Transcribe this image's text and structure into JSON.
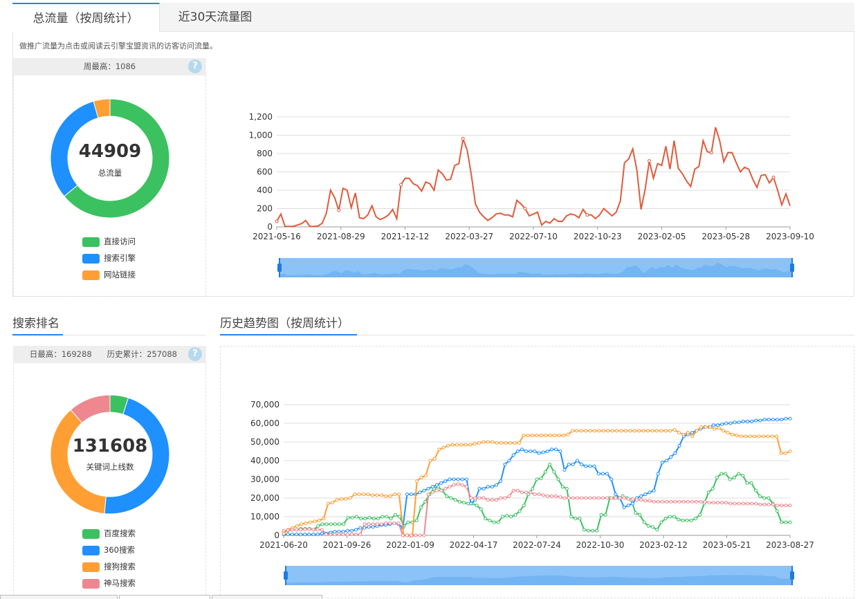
{
  "tabs": [
    {
      "label": "总流量（按周统计）"
    },
    {
      "label": "近30天流量图"
    }
  ],
  "description": "做推广流量为点击或阅读云引擎宝盟资讯的访客访问流量。",
  "traffic_panel": {
    "stat": "周最高：1086",
    "total": "44909",
    "total_caption": "总流量",
    "legend": [
      {
        "label": "直接访问",
        "color": "#3cc160"
      },
      {
        "label": "搜索引擎",
        "color": "#1e90ff"
      },
      {
        "label": "网站链接",
        "color": "#ff9f33"
      }
    ]
  },
  "ranking_section": {
    "title": "搜索排名",
    "stat_max": "日最高：169288",
    "stat_total": "历史累计：257088",
    "total": "131608",
    "total_caption": "关键词上线数",
    "legend": [
      {
        "label": "百度搜索",
        "color": "#3cc160"
      },
      {
        "label": "360搜索",
        "color": "#1e90ff"
      },
      {
        "label": "搜狗搜索",
        "color": "#ff9f33"
      },
      {
        "label": "神马搜索",
        "color": "#ef8790"
      }
    ]
  },
  "history_section": {
    "title": "历史趋势图（按周统计）"
  },
  "help_icon": "?",
  "chart_data": [
    {
      "id": "traffic-donut",
      "type": "pie",
      "labels": [
        "直接访问",
        "搜索引擎",
        "网站链接"
      ],
      "values": [
        64,
        31.5,
        4.5
      ],
      "colors": [
        "#3cc160",
        "#1e90ff",
        "#ff9f33"
      ]
    },
    {
      "id": "weekly-traffic",
      "type": "line",
      "x_ticks": [
        "2021-05-16",
        "2021-08-29",
        "2021-12-12",
        "2022-03-27",
        "2022-07-10",
        "2022-10-23",
        "2023-02-05",
        "2023-05-28",
        "2023-09-10"
      ],
      "ylim": [
        0,
        1200
      ],
      "y_ticks": [
        "0",
        "200",
        "400",
        "600",
        "800",
        "1,000",
        "1,200"
      ],
      "grid": true,
      "series": [
        {
          "color": "#e05a3a",
          "values": [
            60,
            140,
            5,
            5,
            5,
            20,
            35,
            70,
            5,
            5,
            10,
            40,
            150,
            400,
            320,
            180,
            420,
            400,
            210,
            370,
            100,
            90,
            130,
            230,
            110,
            80,
            100,
            130,
            190,
            90,
            460,
            530,
            530,
            470,
            450,
            390,
            490,
            470,
            400,
            620,
            580,
            510,
            520,
            670,
            690,
            960,
            840,
            570,
            250,
            160,
            110,
            70,
            100,
            140,
            150,
            130,
            130,
            110,
            290,
            250,
            200,
            120,
            140,
            160,
            20,
            60,
            40,
            90,
            60,
            60,
            120,
            140,
            130,
            100,
            190,
            130,
            130,
            90,
            130,
            200,
            160,
            120,
            160,
            280,
            700,
            740,
            850,
            620,
            190,
            410,
            720,
            530,
            690,
            670,
            880,
            630,
            940,
            640,
            580,
            500,
            440,
            630,
            660,
            940,
            820,
            810,
            1086,
            940,
            710,
            810,
            810,
            700,
            600,
            650,
            630,
            520,
            430,
            560,
            570,
            480,
            540,
            400,
            240,
            360,
            230
          ]
        }
      ]
    },
    {
      "id": "ranking-donut",
      "type": "pie",
      "labels": [
        "百度搜索",
        "360搜索",
        "搜狗搜索",
        "神马搜索"
      ],
      "values": [
        5,
        46.5,
        37,
        11.5
      ],
      "colors": [
        "#3cc160",
        "#1e90ff",
        "#ff9f33",
        "#ef8790"
      ]
    },
    {
      "id": "history-trend",
      "type": "line",
      "x_ticks": [
        "2021-06-20",
        "2021-09-26",
        "2022-01-09",
        "2022-04-17",
        "2022-07-24",
        "2022-10-30",
        "2023-02-12",
        "2023-05-21",
        "2023-08-27"
      ],
      "ylim": [
        0,
        70000
      ],
      "y_ticks": [
        "0",
        "10,000",
        "20,000",
        "30,000",
        "40,000",
        "50,000",
        "60,000",
        "70,000"
      ],
      "grid": true,
      "series": [
        {
          "name": "百度搜索",
          "color": "#3cc160",
          "values": [
            2000,
            2500,
            3000,
            3000,
            3500,
            3500,
            3500,
            3000,
            5000,
            6000,
            6000,
            6000,
            6000,
            6000,
            6000,
            9500,
            9500,
            10000,
            9000,
            9000,
            9500,
            9000,
            9000,
            10000,
            10000,
            9000,
            11000,
            10000,
            5000,
            7000,
            7000,
            8000,
            15000,
            18000,
            22000,
            25000,
            26000,
            24000,
            21000,
            20000,
            19000,
            18000,
            17500,
            17000,
            17000,
            16000,
            14000,
            9000,
            8000,
            7000,
            7000,
            10000,
            10500,
            10000,
            11000,
            13000,
            16000,
            22000,
            25000,
            30000,
            30500,
            34000,
            38000,
            34000,
            30000,
            26000,
            25000,
            10000,
            9000,
            9000,
            3000,
            2500,
            2500,
            2500,
            11000,
            11000,
            20000,
            20000,
            20000,
            21000,
            20000,
            19000,
            12000,
            11000,
            7000,
            5000,
            4500,
            3000,
            7000,
            9000,
            10000,
            10000,
            8500,
            8000,
            8000,
            8000,
            9000,
            11000,
            17000,
            23000,
            25000,
            31000,
            33000,
            33000,
            30000,
            31000,
            33000,
            32000,
            28000,
            28000,
            24000,
            21000,
            20000,
            20000,
            17000,
            13000,
            7000,
            7000,
            7000
          ]
        },
        {
          "name": "360搜索",
          "color": "#1e90ff",
          "values": [
            500,
            500,
            500,
            500,
            500,
            500,
            500,
            500,
            500,
            1000,
            1000,
            1500,
            2000,
            2000,
            2000,
            2500,
            2500,
            3000,
            4000,
            4000,
            4500,
            4500,
            5000,
            5500,
            5500,
            6000,
            6500,
            6000,
            4000,
            22000,
            22000,
            22000,
            23000,
            24000,
            25000,
            26000,
            27000,
            28000,
            29000,
            30000,
            30000,
            30000,
            30000,
            30000,
            17000,
            19000,
            25000,
            25000,
            26000,
            26000,
            27000,
            29000,
            38000,
            40000,
            43000,
            45000,
            46000,
            45000,
            45000,
            45000,
            44000,
            44500,
            45000,
            46000,
            46000,
            45000,
            35000,
            38000,
            38000,
            40000,
            38000,
            37000,
            37000,
            37000,
            33000,
            33000,
            33000,
            30000,
            22000,
            20000,
            15000,
            16000,
            17000,
            20000,
            21000,
            22000,
            23000,
            24000,
            33000,
            39000,
            40000,
            42000,
            44000,
            48000,
            53000,
            54000,
            55000,
            56000,
            57000,
            58000,
            58000,
            59000,
            59000,
            59500,
            60000,
            60000,
            60500,
            60500,
            61000,
            61000,
            61000,
            61500,
            61500,
            62000,
            62000,
            62000,
            62000,
            62000,
            62500,
            62500
          ]
        },
        {
          "name": "搜狗搜索",
          "color": "#ff9f33",
          "values": [
            1000,
            3000,
            4000,
            5000,
            6000,
            6500,
            7000,
            7500,
            8000,
            9000,
            17000,
            17500,
            19000,
            19500,
            19500,
            20000,
            22000,
            22000,
            22000,
            22000,
            21500,
            21500,
            21500,
            21000,
            21000,
            22000,
            22000,
            0,
            0,
            0,
            29000,
            31000,
            32000,
            40000,
            41000,
            46000,
            47000,
            48000,
            48500,
            48500,
            48500,
            48500,
            48500,
            49000,
            49500,
            50000,
            50000,
            50000,
            49500,
            49500,
            49500,
            49500,
            49500,
            49500,
            53500,
            53500,
            53500,
            53500,
            53500,
            53500,
            53500,
            53500,
            53500,
            53500,
            54000,
            56000,
            56000,
            56000,
            56000,
            56000,
            56000,
            56000,
            56000,
            56000,
            56000,
            56000,
            56000,
            56000,
            56000,
            56000,
            56000,
            56000,
            56000,
            56000,
            56000,
            56000,
            56000,
            56000,
            56500,
            55000,
            54000,
            55000,
            53000,
            56000,
            58000,
            58000,
            58000,
            57000,
            57500,
            56000,
            55000,
            54000,
            53500,
            53000,
            53000,
            53000,
            53000,
            53000,
            53000,
            53000,
            53000,
            53000,
            44000,
            44000,
            45000
          ]
        },
        {
          "name": "神马搜索",
          "color": "#ef8790",
          "values": [
            2500,
            2800,
            3000,
            3000,
            3000,
            3200,
            3200,
            3000,
            3000,
            3000,
            500,
            500,
            500,
            500,
            500,
            500,
            500,
            500,
            500,
            6000,
            6000,
            6000,
            6000,
            6000,
            6500,
            6500,
            6500,
            6500,
            0,
            0,
            0,
            0,
            0,
            0,
            22000,
            23000,
            24000,
            24000,
            25000,
            26000,
            27000,
            27500,
            27000,
            26000,
            20000,
            20000,
            20000,
            20000,
            19000,
            19000,
            19000,
            20000,
            20000,
            21000,
            24000,
            24000,
            23000,
            23000,
            23000,
            22000,
            22000,
            21500,
            21000,
            21000,
            21000,
            20500,
            20000,
            20000,
            20000,
            20000,
            20000,
            20000,
            20000,
            20000,
            20000,
            20000,
            20000,
            20000,
            20000,
            20000,
            20000,
            19500,
            19500,
            19000,
            19000,
            18500,
            18500,
            18000,
            18000,
            18000,
            18000,
            18000,
            18000,
            18000,
            18000,
            18000,
            18000,
            18000,
            18000,
            18000,
            17500,
            17500,
            17500,
            17500,
            17500,
            17000,
            17000,
            17000,
            17000,
            17000,
            17000,
            17000,
            16500,
            16500,
            16500,
            16500,
            16000,
            16000,
            16000,
            16000
          ]
        }
      ]
    }
  ]
}
